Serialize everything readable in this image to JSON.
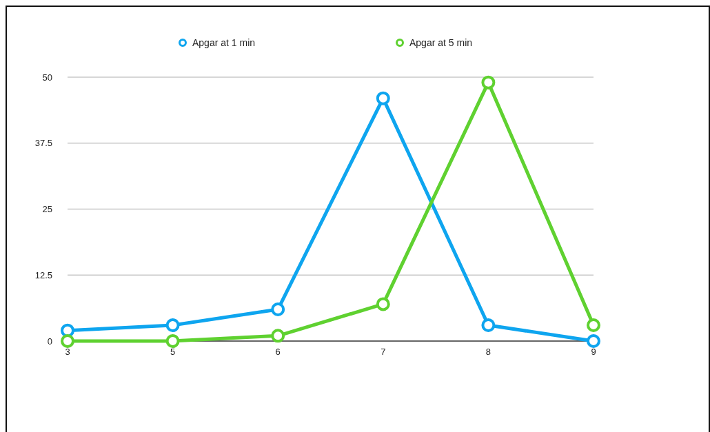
{
  "chart_data": {
    "type": "line",
    "categories": [
      "3",
      "5",
      "6",
      "7",
      "8",
      "9"
    ],
    "series": [
      {
        "name": "Apgar at 1 min",
        "color": "#0ea5ef",
        "values": [
          2,
          3,
          6,
          46,
          3,
          0
        ]
      },
      {
        "name": "Apgar at 5 min",
        "color": "#5fd130",
        "values": [
          0,
          0,
          1,
          7,
          49,
          3
        ]
      }
    ],
    "ylim": [
      0,
      50
    ],
    "yticks": [
      0,
      {
        "value": 12.5,
        "label": "12.5"
      },
      25,
      {
        "value": 37.5,
        "label": "37.5"
      },
      50
    ],
    "grid": "y",
    "legend": "top",
    "marker": "circle",
    "line_style": "solid"
  }
}
